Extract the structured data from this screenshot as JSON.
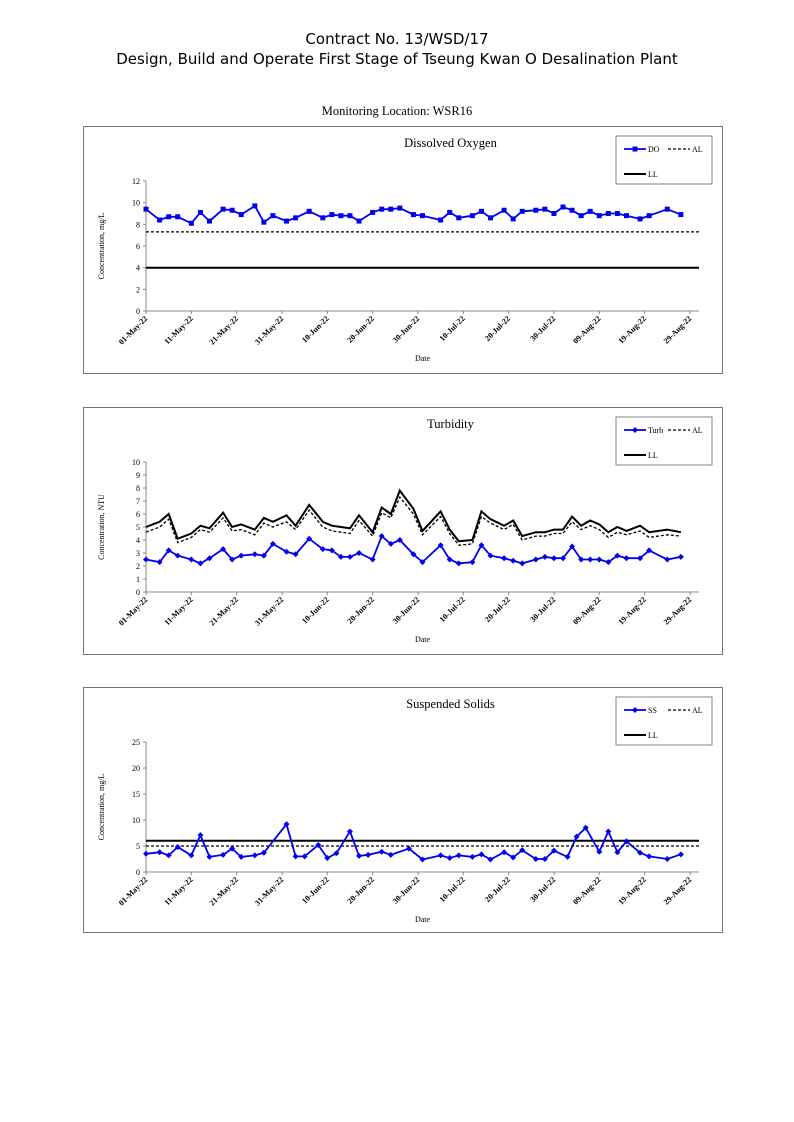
{
  "header": {
    "line1": "Contract No. 13/WSD/17",
    "line2": "Design, Build and Operate First Stage of Tseung Kwan O Desalination Plant"
  },
  "location_label": "Monitoring Location: WSR16",
  "colors": {
    "series": "#0000ee",
    "limits": "#000000",
    "frame": "#777777"
  },
  "chart_data": [
    {
      "type": "line",
      "title": "Dissolved Oxygen",
      "ylabel": "Concentration, mg/L",
      "xlabel": "Date",
      "ylim": [
        0,
        12
      ],
      "ytick_step": 2,
      "ytick_decimals": 0,
      "xlim": [
        "2022-05-01",
        "2022-08-31"
      ],
      "x_ticks": [
        "01-May-22",
        "11-May-22",
        "21-May-22",
        "31-May-22",
        "10-Jun-22",
        "20-Jun-22",
        "30-Jun-22",
        "10-Jul-22",
        "20-Jul-22",
        "30-Jul-22",
        "09-Aug-22",
        "19-Aug-22",
        "29-Aug-22"
      ],
      "legend_position": "top-right",
      "legend": [
        {
          "label": "DO",
          "style": "blue-square-line"
        },
        {
          "label": "AL",
          "style": "dashed"
        },
        {
          "label": "LL",
          "style": "solid-thick"
        }
      ],
      "series": [
        {
          "name": "DO",
          "marker": "square",
          "x": [
            "2022-05-01",
            "2022-05-04",
            "2022-05-06",
            "2022-05-08",
            "2022-05-11",
            "2022-05-13",
            "2022-05-15",
            "2022-05-18",
            "2022-05-20",
            "2022-05-22",
            "2022-05-25",
            "2022-05-27",
            "2022-05-29",
            "2022-06-01",
            "2022-06-03",
            "2022-06-06",
            "2022-06-09",
            "2022-06-11",
            "2022-06-13",
            "2022-06-15",
            "2022-06-17",
            "2022-06-20",
            "2022-06-22",
            "2022-06-24",
            "2022-06-26",
            "2022-06-29",
            "2022-07-01",
            "2022-07-05",
            "2022-07-07",
            "2022-07-09",
            "2022-07-12",
            "2022-07-14",
            "2022-07-16",
            "2022-07-19",
            "2022-07-21",
            "2022-07-23",
            "2022-07-26",
            "2022-07-28",
            "2022-07-30",
            "2022-08-01",
            "2022-08-03",
            "2022-08-05",
            "2022-08-07",
            "2022-08-09",
            "2022-08-11",
            "2022-08-13",
            "2022-08-15",
            "2022-08-18",
            "2022-08-20",
            "2022-08-24",
            "2022-08-27"
          ],
          "values": [
            9.4,
            8.4,
            8.7,
            8.7,
            8.1,
            9.1,
            8.3,
            9.4,
            9.3,
            8.9,
            9.7,
            8.2,
            8.8,
            8.3,
            8.6,
            9.2,
            8.6,
            8.9,
            8.8,
            8.8,
            8.3,
            9.1,
            9.4,
            9.4,
            9.5,
            8.9,
            8.8,
            8.4,
            9.1,
            8.6,
            8.8,
            9.2,
            8.6,
            9.3,
            8.5,
            9.2,
            9.3,
            9.4,
            9.0,
            9.6,
            9.3,
            8.8,
            9.2,
            8.8,
            9.0,
            9.0,
            8.8,
            8.5,
            8.8,
            9.4,
            8.9
          ]
        },
        {
          "name": "AL",
          "style": "dashed",
          "x": [
            "2022-05-01",
            "2022-08-31"
          ],
          "values": [
            7.3,
            7.3
          ]
        },
        {
          "name": "LL",
          "style": "solid",
          "x": [
            "2022-05-01",
            "2022-08-31"
          ],
          "values": [
            4,
            4
          ]
        }
      ]
    },
    {
      "type": "line",
      "title": "Turbidity",
      "ylabel": "Concentration, NTU",
      "xlabel": "Date",
      "ylim": [
        0,
        10
      ],
      "ytick_step": 1,
      "ytick_decimals": 0,
      "xlim": [
        "2022-05-01",
        "2022-08-31"
      ],
      "x_ticks": [
        "01-May-22",
        "11-May-22",
        "21-May-22",
        "31-May-22",
        "10-Jun-22",
        "20-Jun-22",
        "30-Jun-22",
        "10-Jul-22",
        "20-Jul-22",
        "30-Jul-22",
        "09-Aug-22",
        "19-Aug-22",
        "29-Aug-22"
      ],
      "legend_position": "top-right",
      "legend": [
        {
          "label": "Turb",
          "style": "blue-diamond-line"
        },
        {
          "label": "AL",
          "style": "dashed"
        },
        {
          "label": "LL",
          "style": "solid-thick"
        }
      ],
      "series": [
        {
          "name": "Turb",
          "marker": "diamond",
          "x": [
            "2022-05-01",
            "2022-05-04",
            "2022-05-06",
            "2022-05-08",
            "2022-05-11",
            "2022-05-13",
            "2022-05-15",
            "2022-05-18",
            "2022-05-20",
            "2022-05-22",
            "2022-05-25",
            "2022-05-27",
            "2022-05-29",
            "2022-06-01",
            "2022-06-03",
            "2022-06-06",
            "2022-06-09",
            "2022-06-11",
            "2022-06-13",
            "2022-06-15",
            "2022-06-17",
            "2022-06-20",
            "2022-06-22",
            "2022-06-24",
            "2022-06-26",
            "2022-06-29",
            "2022-07-01",
            "2022-07-05",
            "2022-07-07",
            "2022-07-09",
            "2022-07-12",
            "2022-07-14",
            "2022-07-16",
            "2022-07-19",
            "2022-07-21",
            "2022-07-23",
            "2022-07-26",
            "2022-07-28",
            "2022-07-30",
            "2022-08-01",
            "2022-08-03",
            "2022-08-05",
            "2022-08-07",
            "2022-08-09",
            "2022-08-11",
            "2022-08-13",
            "2022-08-15",
            "2022-08-18",
            "2022-08-20",
            "2022-08-24",
            "2022-08-27"
          ],
          "values": [
            2.5,
            2.3,
            3.2,
            2.8,
            2.5,
            2.2,
            2.6,
            3.3,
            2.5,
            2.8,
            2.9,
            2.8,
            3.7,
            3.1,
            2.9,
            4.1,
            3.3,
            3.2,
            2.7,
            2.7,
            3.0,
            2.5,
            4.3,
            3.7,
            4.0,
            2.9,
            2.3,
            3.6,
            2.5,
            2.2,
            2.3,
            3.6,
            2.8,
            2.6,
            2.4,
            2.2,
            2.5,
            2.7,
            2.6,
            2.6,
            3.5,
            2.5,
            2.5,
            2.5,
            2.3,
            2.8,
            2.6,
            2.6,
            3.2,
            2.5,
            2.7
          ]
        },
        {
          "name": "AL",
          "style": "dashed",
          "x": [
            "2022-05-01",
            "2022-05-04",
            "2022-05-06",
            "2022-05-08",
            "2022-05-11",
            "2022-05-13",
            "2022-05-15",
            "2022-05-18",
            "2022-05-20",
            "2022-05-22",
            "2022-05-25",
            "2022-05-27",
            "2022-05-29",
            "2022-06-01",
            "2022-06-03",
            "2022-06-06",
            "2022-06-09",
            "2022-06-11",
            "2022-06-13",
            "2022-06-15",
            "2022-06-17",
            "2022-06-20",
            "2022-06-22",
            "2022-06-24",
            "2022-06-26",
            "2022-06-29",
            "2022-07-01",
            "2022-07-05",
            "2022-07-07",
            "2022-07-09",
            "2022-07-12",
            "2022-07-14",
            "2022-07-16",
            "2022-07-19",
            "2022-07-21",
            "2022-07-23",
            "2022-07-26",
            "2022-07-28",
            "2022-07-30",
            "2022-08-01",
            "2022-08-03",
            "2022-08-05",
            "2022-08-07",
            "2022-08-09",
            "2022-08-11",
            "2022-08-13",
            "2022-08-15",
            "2022-08-18",
            "2022-08-20",
            "2022-08-24",
            "2022-08-27"
          ],
          "values": [
            4.6,
            5.0,
            5.6,
            3.8,
            4.2,
            4.8,
            4.6,
            5.7,
            4.7,
            4.8,
            4.4,
            5.3,
            5.0,
            5.4,
            4.8,
            6.3,
            5.0,
            4.7,
            4.6,
            4.5,
            5.5,
            4.3,
            6.1,
            5.7,
            7.3,
            6.0,
            4.4,
            5.8,
            4.5,
            3.6,
            3.7,
            5.8,
            5.3,
            4.8,
            5.2,
            4.0,
            4.3,
            4.3,
            4.5,
            4.5,
            5.4,
            4.8,
            5.1,
            4.8,
            4.2,
            4.6,
            4.4,
            4.7,
            4.2,
            4.4,
            4.3
          ]
        },
        {
          "name": "LL",
          "style": "solid",
          "x": [
            "2022-05-01",
            "2022-05-04",
            "2022-05-06",
            "2022-05-08",
            "2022-05-11",
            "2022-05-13",
            "2022-05-15",
            "2022-05-18",
            "2022-05-20",
            "2022-05-22",
            "2022-05-25",
            "2022-05-27",
            "2022-05-29",
            "2022-06-01",
            "2022-06-03",
            "2022-06-06",
            "2022-06-09",
            "2022-06-11",
            "2022-06-13",
            "2022-06-15",
            "2022-06-17",
            "2022-06-20",
            "2022-06-22",
            "2022-06-24",
            "2022-06-26",
            "2022-06-29",
            "2022-07-01",
            "2022-07-05",
            "2022-07-07",
            "2022-07-09",
            "2022-07-12",
            "2022-07-14",
            "2022-07-16",
            "2022-07-19",
            "2022-07-21",
            "2022-07-23",
            "2022-07-26",
            "2022-07-28",
            "2022-07-30",
            "2022-08-01",
            "2022-08-03",
            "2022-08-05",
            "2022-08-07",
            "2022-08-09",
            "2022-08-11",
            "2022-08-13",
            "2022-08-15",
            "2022-08-18",
            "2022-08-20",
            "2022-08-24",
            "2022-08-27"
          ],
          "values": [
            5.0,
            5.4,
            6.0,
            4.1,
            4.5,
            5.1,
            4.9,
            6.1,
            5.0,
            5.2,
            4.8,
            5.7,
            5.4,
            5.9,
            5.1,
            6.7,
            5.4,
            5.1,
            5.0,
            4.9,
            5.9,
            4.6,
            6.5,
            6.0,
            7.8,
            6.4,
            4.7,
            6.2,
            4.8,
            3.9,
            4.0,
            6.2,
            5.6,
            5.1,
            5.5,
            4.3,
            4.6,
            4.6,
            4.8,
            4.8,
            5.8,
            5.1,
            5.5,
            5.2,
            4.6,
            5.0,
            4.7,
            5.1,
            4.6,
            4.8,
            4.6
          ]
        }
      ]
    },
    {
      "type": "line",
      "title": "Suspended Solids",
      "ylabel": "Concentration, mg/L",
      "xlabel": "Date",
      "ylim": [
        0,
        25
      ],
      "ytick_step": 5,
      "ytick_decimals": 0,
      "xlim": [
        "2022-05-01",
        "2022-08-31"
      ],
      "x_ticks": [
        "01-May-22",
        "11-May-22",
        "21-May-22",
        "31-May-22",
        "10-Jun-22",
        "20-Jun-22",
        "30-Jun-22",
        "10-Jul-22",
        "20-Jul-22",
        "30-Jul-22",
        "09-Aug-22",
        "19-Aug-22",
        "29-Aug-22"
      ],
      "legend_position": "top-right",
      "legend": [
        {
          "label": "SS",
          "style": "blue-diamond-line"
        },
        {
          "label": "AL",
          "style": "dashed"
        },
        {
          "label": "LL",
          "style": "solid-thick"
        }
      ],
      "series": [
        {
          "name": "SS",
          "marker": "diamond",
          "x": [
            "2022-05-01",
            "2022-05-04",
            "2022-05-06",
            "2022-05-08",
            "2022-05-11",
            "2022-05-13",
            "2022-05-15",
            "2022-05-18",
            "2022-05-20",
            "2022-05-22",
            "2022-05-25",
            "2022-05-27",
            "2022-06-01",
            "2022-06-03",
            "2022-06-05",
            "2022-06-08",
            "2022-06-10",
            "2022-06-12",
            "2022-06-15",
            "2022-06-17",
            "2022-06-19",
            "2022-06-22",
            "2022-06-24",
            "2022-06-28",
            "2022-07-01",
            "2022-07-05",
            "2022-07-07",
            "2022-07-09",
            "2022-07-12",
            "2022-07-14",
            "2022-07-16",
            "2022-07-19",
            "2022-07-21",
            "2022-07-23",
            "2022-07-26",
            "2022-07-28",
            "2022-07-30",
            "2022-08-02",
            "2022-08-04",
            "2022-08-06",
            "2022-08-09",
            "2022-08-11",
            "2022-08-13",
            "2022-08-15",
            "2022-08-18",
            "2022-08-20",
            "2022-08-24",
            "2022-08-27"
          ],
          "values": [
            3.5,
            3.8,
            3.2,
            4.8,
            3.2,
            7.1,
            2.9,
            3.3,
            4.5,
            2.9,
            3.2,
            3.7,
            9.2,
            3.0,
            3.0,
            5.2,
            2.7,
            3.6,
            7.8,
            3.1,
            3.3,
            3.9,
            3.3,
            4.5,
            2.4,
            3.2,
            2.7,
            3.2,
            2.9,
            3.4,
            2.4,
            3.8,
            2.8,
            4.2,
            2.5,
            2.5,
            4.1,
            2.9,
            6.8,
            8.5,
            3.9,
            7.8,
            3.8,
            5.9,
            3.7,
            3.0,
            2.5,
            3.4
          ]
        },
        {
          "name": "AL",
          "style": "dashed",
          "x": [
            "2022-05-01",
            "2022-08-31"
          ],
          "values": [
            5.0,
            5.0
          ]
        },
        {
          "name": "LL",
          "style": "solid",
          "x": [
            "2022-05-01",
            "2022-08-31"
          ],
          "values": [
            6.0,
            6.0
          ]
        }
      ]
    }
  ]
}
